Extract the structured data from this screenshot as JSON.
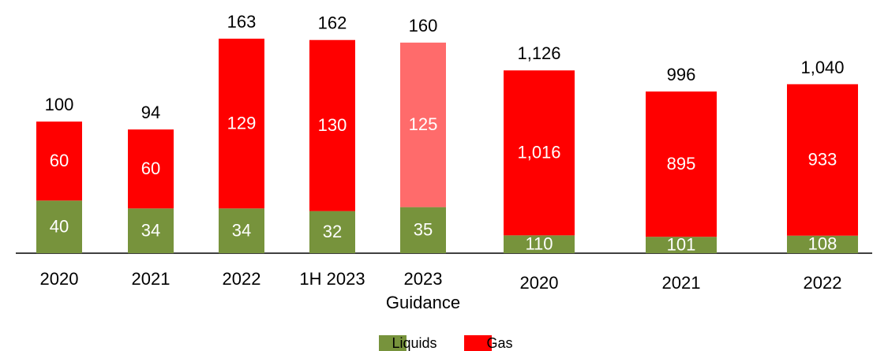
{
  "chart_data": [
    {
      "type": "bar",
      "stacked": true,
      "categories": [
        "2020",
        "2021",
        "2022",
        "1H 2023",
        "2023\nGuidance"
      ],
      "series": [
        {
          "name": "Liquids",
          "color": "#77933c",
          "values": [
            40,
            34,
            34,
            32,
            35
          ]
        },
        {
          "name": "Gas",
          "color": "#ff0000",
          "colors": [
            "#ff0000",
            "#ff0000",
            "#ff0000",
            "#ff0000",
            "#ff6b6b"
          ],
          "values": [
            60,
            60,
            129,
            130,
            125
          ]
        }
      ],
      "totals": [
        100,
        94,
        163,
        162,
        160
      ],
      "ylim": [
        0,
        190
      ]
    },
    {
      "type": "bar",
      "stacked": true,
      "categories": [
        "2020",
        "2021",
        "2022"
      ],
      "series": [
        {
          "name": "Liquids",
          "color": "#77933c",
          "values": [
            110,
            101,
            108
          ]
        },
        {
          "name": "Gas",
          "color": "#ff0000",
          "values": [
            1016,
            895,
            933
          ],
          "value_labels": [
            "1,016",
            "895",
            "933"
          ]
        }
      ],
      "totals": [
        1126,
        996,
        1040
      ],
      "total_labels": [
        "1,126",
        "996",
        "1,040"
      ],
      "ylim": [
        0,
        1550
      ]
    }
  ]
}
